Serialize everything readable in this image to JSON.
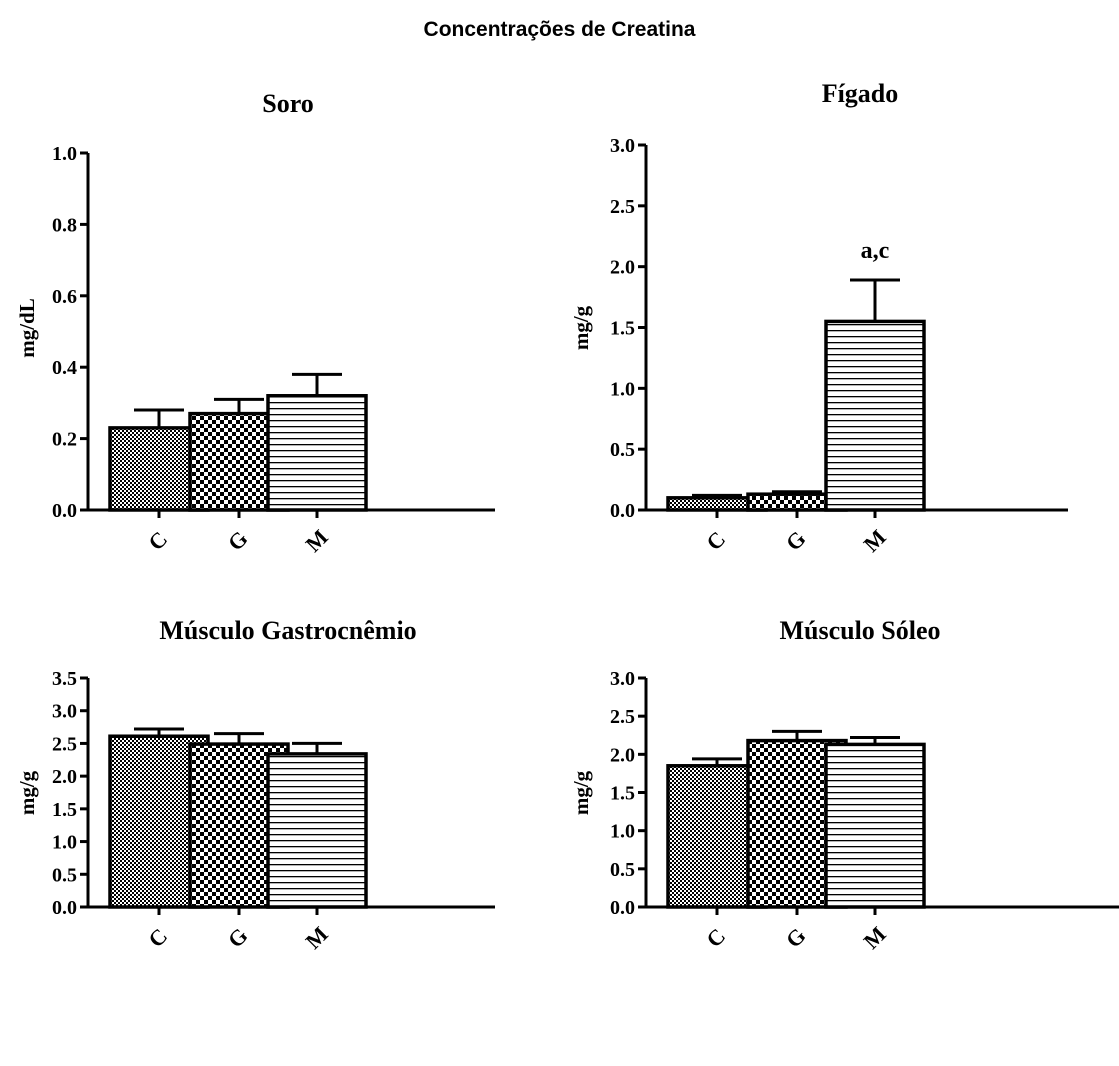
{
  "title": "Concentrações de Creatina",
  "chart_data": [
    {
      "type": "bar",
      "title": "Soro",
      "ylabel": "mg/dL",
      "ylim": [
        0,
        1.0
      ],
      "yticks": [
        "0.0",
        "0.2",
        "0.4",
        "0.6",
        "0.8",
        "1.0"
      ],
      "categories": [
        "C",
        "G",
        "M"
      ],
      "values": [
        0.23,
        0.27,
        0.32
      ],
      "errors": [
        0.05,
        0.04,
        0.06
      ],
      "annotations": [
        "",
        "",
        ""
      ],
      "patterns": [
        "fine-checker",
        "checker",
        "horizontal-lines"
      ]
    },
    {
      "type": "bar",
      "title": "Fígado",
      "ylabel": "mg/g",
      "ylim": [
        0,
        3.0
      ],
      "yticks": [
        "0.0",
        "0.5",
        "1.0",
        "1.5",
        "2.0",
        "2.5",
        "3.0"
      ],
      "categories": [
        "C",
        "G",
        "M"
      ],
      "values": [
        0.1,
        0.13,
        1.55
      ],
      "errors": [
        0.02,
        0.02,
        0.34
      ],
      "annotations": [
        "",
        "",
        "a,c"
      ],
      "patterns": [
        "fine-checker",
        "checker",
        "horizontal-lines"
      ]
    },
    {
      "type": "bar",
      "title": "Músculo Gastrocnêmio",
      "ylabel": "mg/g",
      "ylim": [
        0,
        3.5
      ],
      "yticks": [
        "0.0",
        "0.5",
        "1.0",
        "1.5",
        "2.0",
        "2.5",
        "3.0",
        "3.5"
      ],
      "categories": [
        "C",
        "G",
        "M"
      ],
      "values": [
        2.61,
        2.49,
        2.34
      ],
      "errors": [
        0.11,
        0.16,
        0.16
      ],
      "annotations": [
        "",
        "",
        ""
      ],
      "patterns": [
        "fine-checker",
        "checker",
        "horizontal-lines"
      ]
    },
    {
      "type": "bar",
      "title": "Músculo Sóleo",
      "ylabel": "mg/g",
      "ylim": [
        0,
        3.0
      ],
      "yticks": [
        "0.0",
        "0.5",
        "1.0",
        "1.5",
        "2.0",
        "2.5",
        "3.0"
      ],
      "categories": [
        "C",
        "G",
        "M"
      ],
      "values": [
        1.85,
        2.18,
        2.13
      ],
      "errors": [
        0.09,
        0.12,
        0.09
      ],
      "annotations": [
        "",
        "",
        ""
      ],
      "patterns": [
        "fine-checker",
        "checker",
        "horizontal-lines"
      ]
    }
  ]
}
